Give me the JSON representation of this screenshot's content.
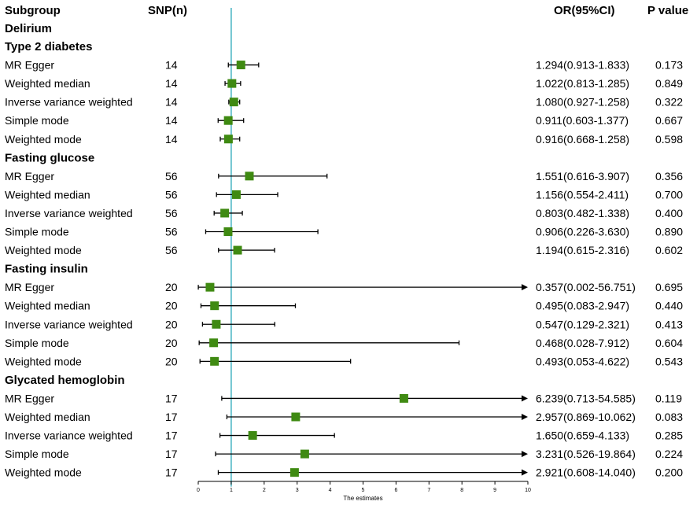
{
  "chart_data": {
    "type": "forest",
    "headers": {
      "subgroup": "Subgroup",
      "snp": "SNP(n)",
      "or_ci": "OR(95%CI)",
      "p": "P value"
    },
    "outcome": "Delirium",
    "x_axis": {
      "label": "The estimates",
      "range": [
        0,
        10
      ],
      "ticks": [
        0,
        1,
        2,
        3,
        4,
        5,
        6,
        7,
        8,
        9,
        10
      ],
      "reference_line": 1
    },
    "groups": [
      {
        "name": "Type 2 diabetes",
        "rows": [
          {
            "method": "MR Egger",
            "snp": "14",
            "or": 1.294,
            "lo": 0.913,
            "hi": 1.833,
            "or_text": "1.294(0.913-1.833)",
            "p": "0.173"
          },
          {
            "method": "Weighted median",
            "snp": "14",
            "or": 1.022,
            "lo": 0.813,
            "hi": 1.285,
            "or_text": "1.022(0.813-1.285)",
            "p": "0.849"
          },
          {
            "method": "Inverse variance weighted",
            "snp": "14",
            "or": 1.08,
            "lo": 0.927,
            "hi": 1.258,
            "or_text": "1.080(0.927-1.258)",
            "p": "0.322"
          },
          {
            "method": "Simple mode",
            "snp": "14",
            "or": 0.911,
            "lo": 0.603,
            "hi": 1.377,
            "or_text": "0.911(0.603-1.377)",
            "p": "0.667"
          },
          {
            "method": "Weighted mode",
            "snp": "14",
            "or": 0.916,
            "lo": 0.668,
            "hi": 1.258,
            "or_text": "0.916(0.668-1.258)",
            "p": "0.598"
          }
        ]
      },
      {
        "name": "Fasting glucose",
        "rows": [
          {
            "method": "MR Egger",
            "snp": "56",
            "or": 1.551,
            "lo": 0.616,
            "hi": 3.907,
            "or_text": "1.551(0.616-3.907)",
            "p": "0.356"
          },
          {
            "method": "Weighted median",
            "snp": "56",
            "or": 1.156,
            "lo": 0.554,
            "hi": 2.411,
            "or_text": "1.156(0.554-2.411)",
            "p": "0.700"
          },
          {
            "method": "Inverse variance weighted",
            "snp": "56",
            "or": 0.803,
            "lo": 0.482,
            "hi": 1.338,
            "or_text": "0.803(0.482-1.338)",
            "p": "0.400"
          },
          {
            "method": "Simple mode",
            "snp": "56",
            "or": 0.906,
            "lo": 0.226,
            "hi": 3.63,
            "or_text": "0.906(0.226-3.630)",
            "p": "0.890"
          },
          {
            "method": "Weighted mode",
            "snp": "56",
            "or": 1.194,
            "lo": 0.615,
            "hi": 2.316,
            "or_text": "1.194(0.615-2.316)",
            "p": "0.602"
          }
        ]
      },
      {
        "name": "Fasting insulin",
        "rows": [
          {
            "method": "MR Egger",
            "snp": "20",
            "or": 0.357,
            "lo": 0.002,
            "hi": 56.751,
            "or_text": "0.357(0.002-56.751)",
            "p": "0.695"
          },
          {
            "method": "Weighted median",
            "snp": "20",
            "or": 0.495,
            "lo": 0.083,
            "hi": 2.947,
            "or_text": "0.495(0.083-2.947)",
            "p": "0.440"
          },
          {
            "method": "Inverse variance weighted",
            "snp": "20",
            "or": 0.547,
            "lo": 0.129,
            "hi": 2.321,
            "or_text": "0.547(0.129-2.321)",
            "p": "0.413"
          },
          {
            "method": "Simple mode",
            "snp": "20",
            "or": 0.468,
            "lo": 0.028,
            "hi": 7.912,
            "or_text": "0.468(0.028-7.912)",
            "p": "0.604"
          },
          {
            "method": "Weighted mode",
            "snp": "20",
            "or": 0.493,
            "lo": 0.053,
            "hi": 4.622,
            "or_text": "0.493(0.053-4.622)",
            "p": "0.543"
          }
        ]
      },
      {
        "name": "Glycated hemoglobin",
        "rows": [
          {
            "method": "MR Egger",
            "snp": "17",
            "or": 6.239,
            "lo": 0.713,
            "hi": 54.585,
            "or_text": "6.239(0.713-54.585)",
            "p": "0.119"
          },
          {
            "method": "Weighted median",
            "snp": "17",
            "or": 2.957,
            "lo": 0.869,
            "hi": 10.062,
            "or_text": "2.957(0.869-10.062)",
            "p": "0.083"
          },
          {
            "method": "Inverse variance weighted",
            "snp": "17",
            "or": 1.65,
            "lo": 0.659,
            "hi": 4.133,
            "or_text": "1.650(0.659-4.133)",
            "p": "0.285"
          },
          {
            "method": "Simple mode",
            "snp": "17",
            "or": 3.231,
            "lo": 0.526,
            "hi": 19.864,
            "or_text": "3.231(0.526-19.864)",
            "p": "0.224"
          },
          {
            "method": "Weighted mode",
            "snp": "17",
            "or": 2.921,
            "lo": 0.608,
            "hi": 14.04,
            "or_text": "2.921(0.608-14.040)",
            "p": "0.200"
          }
        ]
      }
    ],
    "colors": {
      "marker": "#3f8a12",
      "reference_line": "#4cb6c4",
      "line": "#000000"
    }
  }
}
